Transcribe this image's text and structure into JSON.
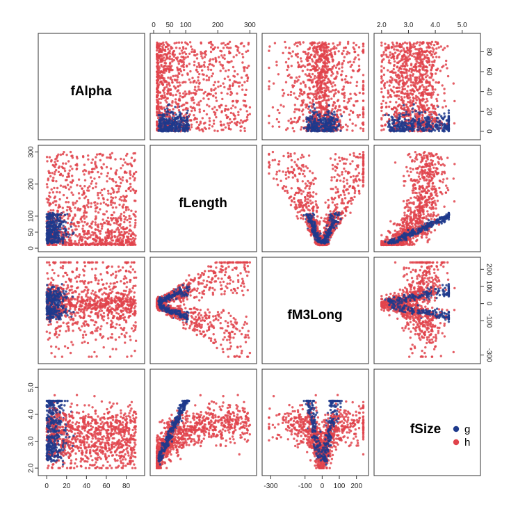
{
  "chart_data": {
    "type": "scatter",
    "title": "",
    "variables": [
      {
        "name": "fAlpha",
        "range": [
          -5,
          95
        ],
        "ticks": [
          0,
          20,
          40,
          60,
          80
        ]
      },
      {
        "name": "fLength",
        "range": [
          0,
          310
        ],
        "ticks": [
          0,
          50,
          100,
          200,
          300
        ]
      },
      {
        "name": "fM3Long",
        "range": [
          -330,
          250
        ],
        "ticks": [
          -300,
          -100,
          0,
          100,
          200
        ]
      },
      {
        "name": "fSize",
        "range": [
          1.85,
          5.55
        ],
        "ticks": [
          2.0,
          3.0,
          4.0,
          5.0
        ],
        "tick_labels": [
          "2.0",
          "3.0",
          "4.0",
          "5.0"
        ]
      }
    ],
    "series": [
      {
        "name": "g",
        "color": "#1e3a8c",
        "n_points": 420
      },
      {
        "name": "h",
        "color": "#e0434b",
        "n_points": 900
      }
    ],
    "legend": {
      "position": "bottom-right panel",
      "entries": [
        "g",
        "h"
      ]
    },
    "panel_layout": "4x4 scatterplot matrix; diagonal shows variable names",
    "relationships": {
      "fAlpha_vs_fLength": "g concentrated at low fAlpha (0-25) and fLength 20-100; h spread across fAlpha 0-90, fLength 10-300",
      "fLength_vs_fM3Long": "V shape: |fM3Long| grows with fLength, g narrow wedge, h wider",
      "fLength_vs_fSize": "increasing curve, fSize ~2.1 at fLength 10 rising to ~4.3 at fLength 100 for g",
      "fM3Long_vs_fSize": "V shape centered at fM3Long 0"
    }
  },
  "labels": {
    "var_fAlpha": "fAlpha",
    "var_fLength": "fLength",
    "var_fM3Long": "fM3Long",
    "var_fSize": "fSize",
    "legend_g": "g",
    "legend_h": "h"
  }
}
